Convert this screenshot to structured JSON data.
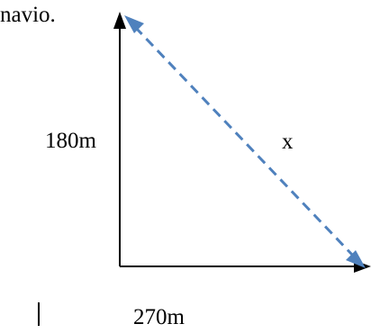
{
  "text": {
    "top_fragment": "navio.",
    "vertical_side": "180m",
    "horizontal_side": "270m",
    "hypotenuse": "x"
  },
  "colors": {
    "axes": "#000000",
    "hypotenuse": "#4f81bd"
  },
  "icons": {
    "axis_arrowheads": "arrowhead-icon",
    "hypotenuse_arrowheads": "double-arrowhead-icon"
  }
}
